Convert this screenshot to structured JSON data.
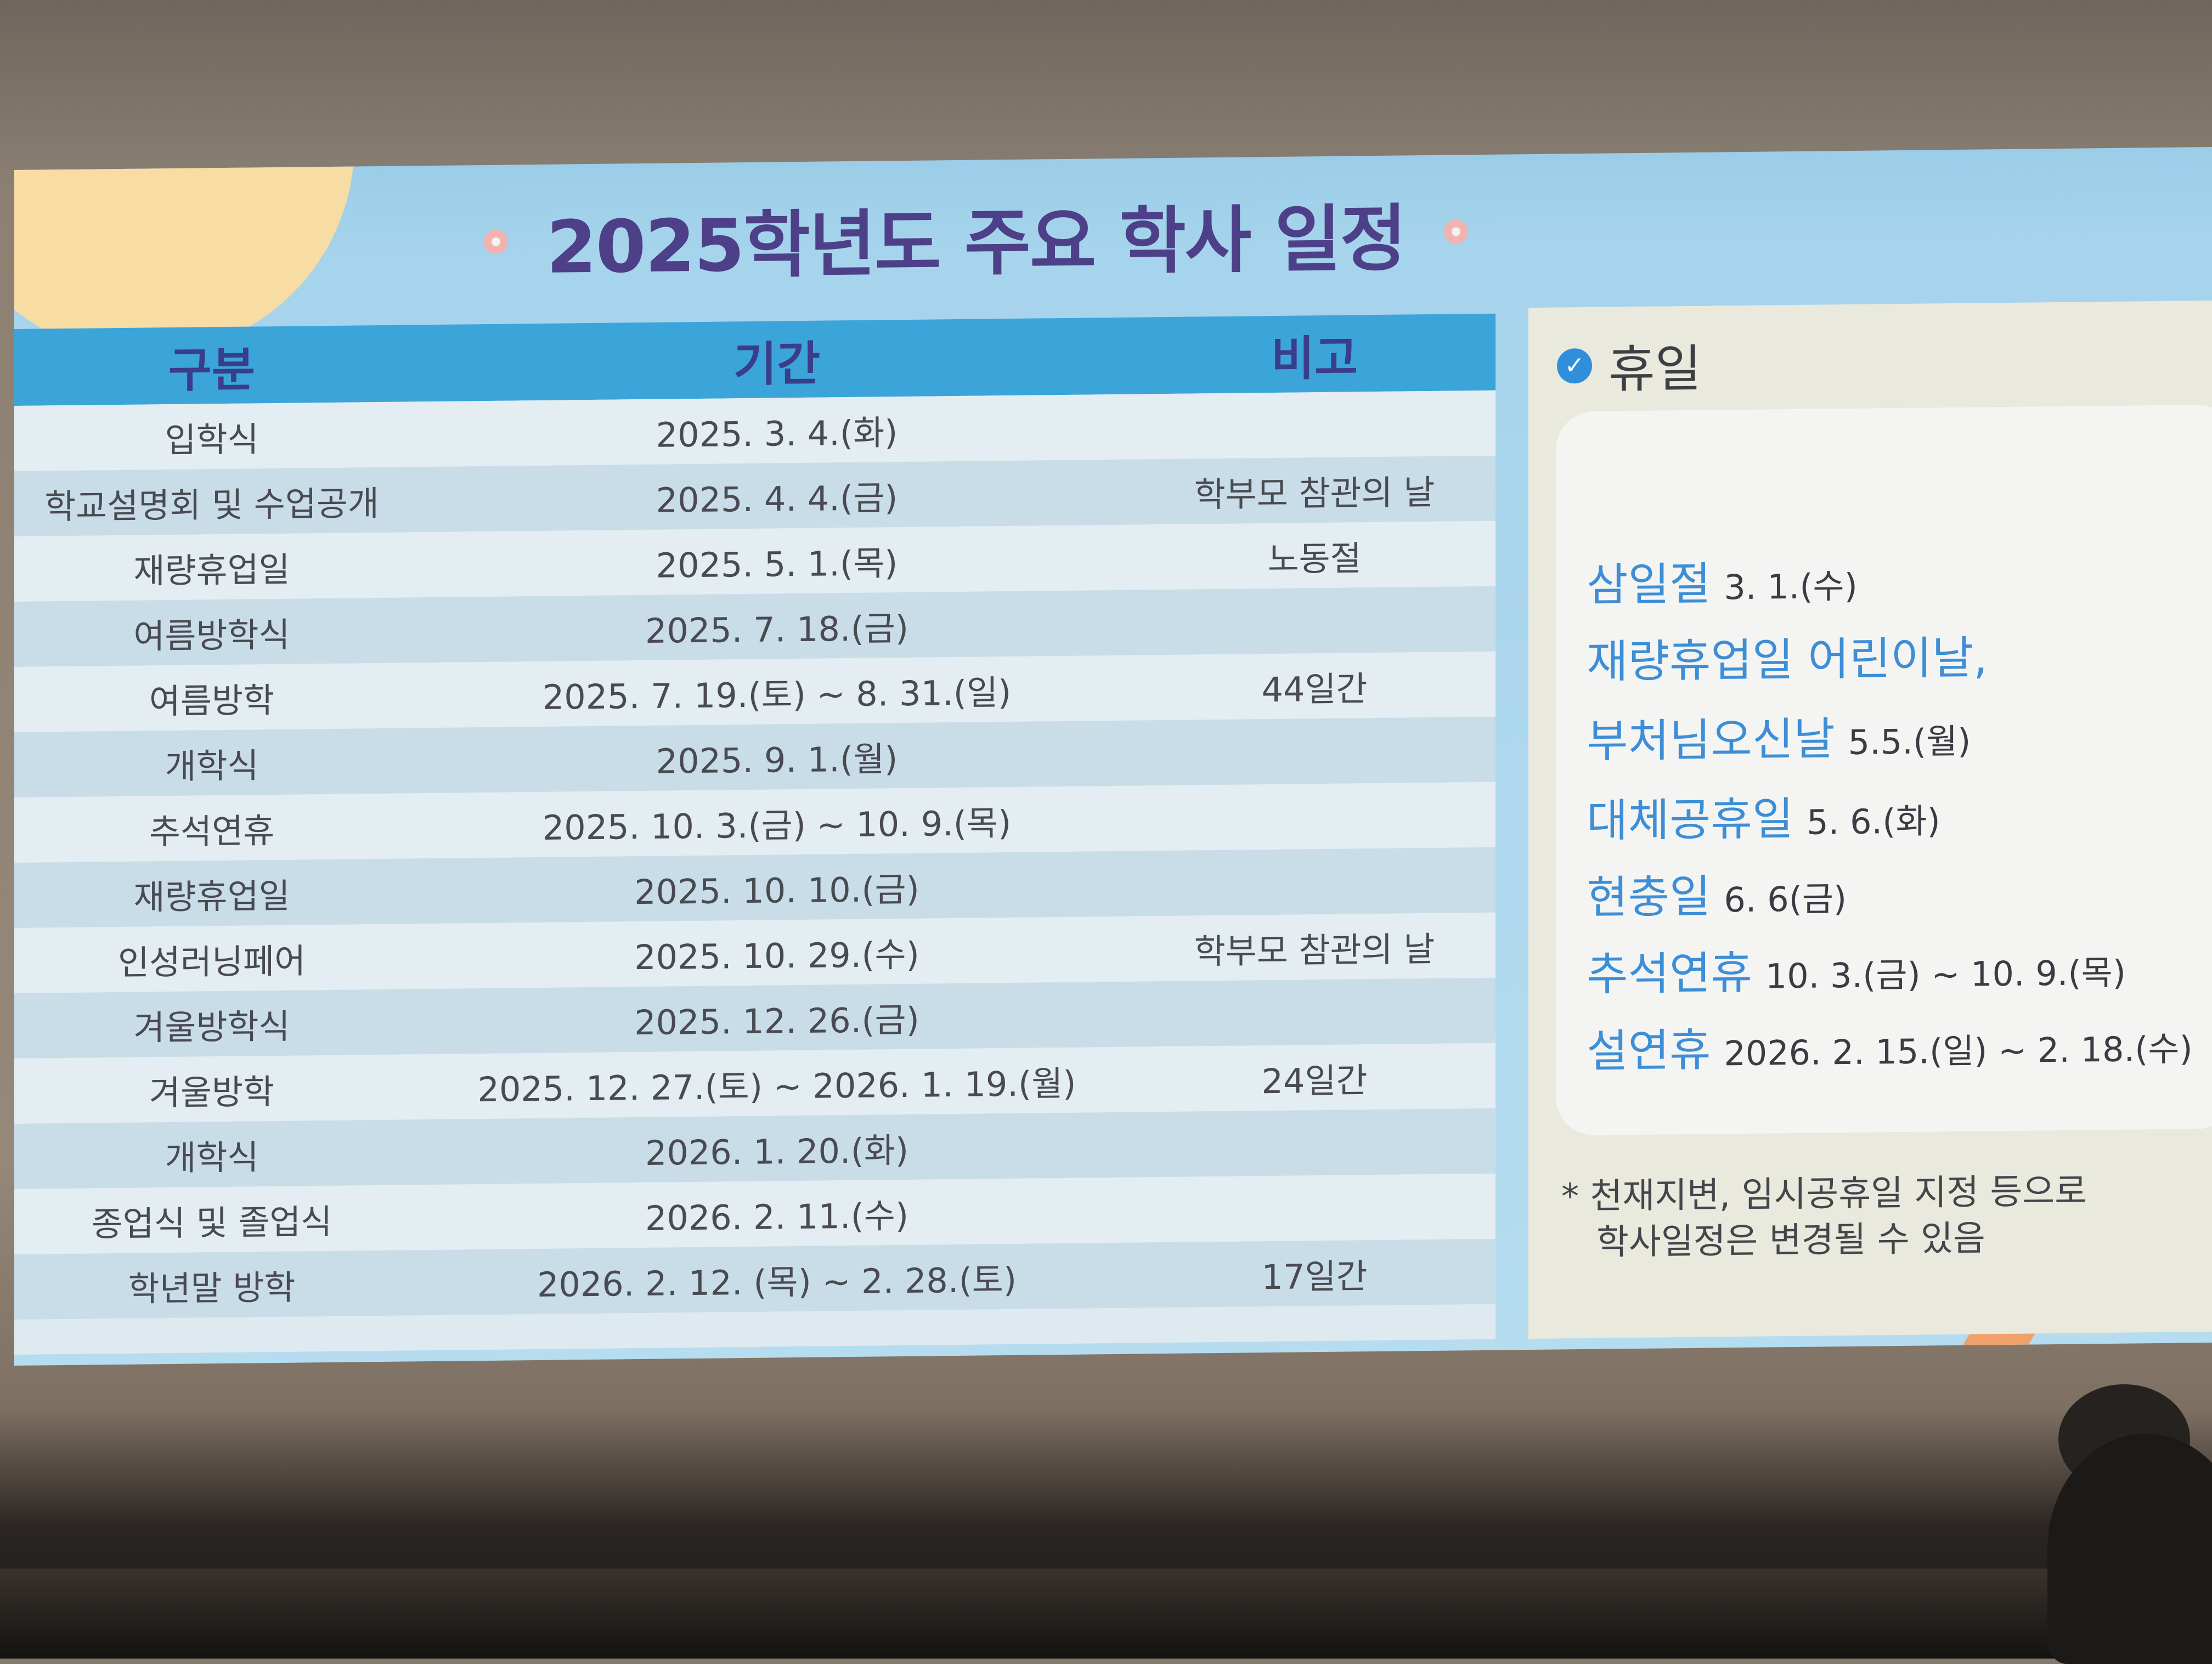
{
  "slide": {
    "title": "2025학년도 주요 학사 일정"
  },
  "table": {
    "headers": [
      "구분",
      "기간",
      "비고"
    ],
    "rows": [
      {
        "category": "입학식",
        "period": "2025. 3. 4.(화)",
        "note": ""
      },
      {
        "category": "학교설명회 및 수업공개",
        "period": "2025. 4. 4.(금)",
        "note": "학부모 참관의 날"
      },
      {
        "category": "재량휴업일",
        "period": "2025. 5. 1.(목)",
        "note": "노동절"
      },
      {
        "category": "여름방학식",
        "period": "2025. 7. 18.(금)",
        "note": ""
      },
      {
        "category": "여름방학",
        "period": "2025. 7. 19.(토) ~ 8. 31.(일)",
        "note": "44일간"
      },
      {
        "category": "개학식",
        "period": "2025. 9. 1.(월)",
        "note": ""
      },
      {
        "category": "추석연휴",
        "period": "2025. 10. 3.(금) ~ 10. 9.(목)",
        "note": ""
      },
      {
        "category": "재량휴업일",
        "period": "2025. 10. 10.(금)",
        "note": ""
      },
      {
        "category": "인성러닝페어",
        "period": "2025. 10. 29.(수)",
        "note": "학부모 참관의 날"
      },
      {
        "category": "겨울방학식",
        "period": "2025. 12. 26.(금)",
        "note": ""
      },
      {
        "category": "겨울방학",
        "period": "2025. 12. 27.(토) ~ 2026. 1. 19.(월)",
        "note": "24일간"
      },
      {
        "category": "개학식",
        "period": "2026. 1. 20.(화)",
        "note": ""
      },
      {
        "category": "종업식 및 졸업식",
        "period": "2026. 2. 11.(수)",
        "note": ""
      },
      {
        "category": "학년말 방학",
        "period": "2026. 2. 12. (목) ~ 2. 28.(토)",
        "note": "17일간"
      }
    ]
  },
  "holidays": {
    "title": "휴일",
    "items": [
      {
        "name": "삼일절",
        "date": "3. 1.(수)"
      },
      {
        "name": "재량휴업일 어린이날,",
        "date": ""
      },
      {
        "name": "부처님오신날",
        "date": "5.5.(월)"
      },
      {
        "name": "대체공휴일",
        "date": "5. 6.(화)"
      },
      {
        "name": "현충일",
        "date": "6. 6(금)"
      },
      {
        "name": "추석연휴",
        "date": "10. 3.(금) ~ 10. 9.(목)"
      },
      {
        "name": "설연휴",
        "date": "2026. 2. 15.(일) ~ 2. 18.(수)"
      }
    ],
    "note_line1": "* 천재지변, 임시공휴일 지정 등으로",
    "note_line2": "학사일정은 변경될 수 있음"
  }
}
